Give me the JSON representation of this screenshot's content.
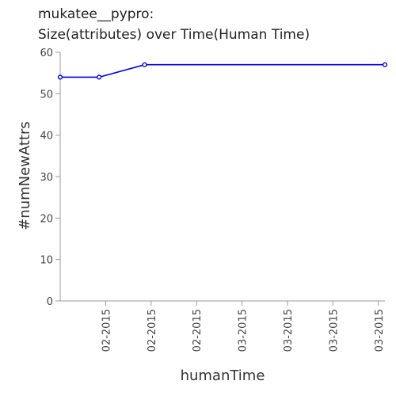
{
  "chart_data": {
    "type": "line",
    "title_lines": [
      "mukatee__pypro:",
      "Size(attributes) over Time(Human Time)"
    ],
    "xlabel": "humanTime",
    "ylabel": "#numNewAttrs",
    "ylim": [
      0,
      60
    ],
    "y_ticks": [
      0,
      10,
      20,
      30,
      40,
      50,
      60
    ],
    "x_ticks": [
      {
        "label": "02-2015",
        "value": "2015-02-07"
      },
      {
        "label": "02-2015",
        "value": "2015-02-14"
      },
      {
        "label": "02-2015",
        "value": "2015-02-21"
      },
      {
        "label": "03-2015",
        "value": "2015-02-28"
      },
      {
        "label": "03-2015",
        "value": "2015-03-07"
      },
      {
        "label": "03-2015",
        "value": "2015-03-14"
      },
      {
        "label": "03-2015",
        "value": "2015-03-21"
      }
    ],
    "xlim": [
      "2015-01-31",
      "2015-03-22"
    ],
    "grid": false,
    "series": [
      {
        "color": "#0000dd",
        "points": [
          {
            "x": "2015-01-31",
            "y": 54
          },
          {
            "x": "2015-02-06",
            "y": 54
          },
          {
            "x": "2015-02-13",
            "y": 57
          },
          {
            "x": "2015-03-22",
            "y": 57
          }
        ]
      }
    ]
  }
}
